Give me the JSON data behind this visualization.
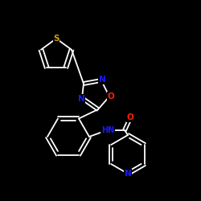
{
  "background_color": "#000000",
  "bond_color": "#ffffff",
  "atom_colors": {
    "S": "#d4a000",
    "N": "#1a1aff",
    "O": "#ff2000",
    "C": "#ffffff",
    "H": "#ffffff"
  }
}
